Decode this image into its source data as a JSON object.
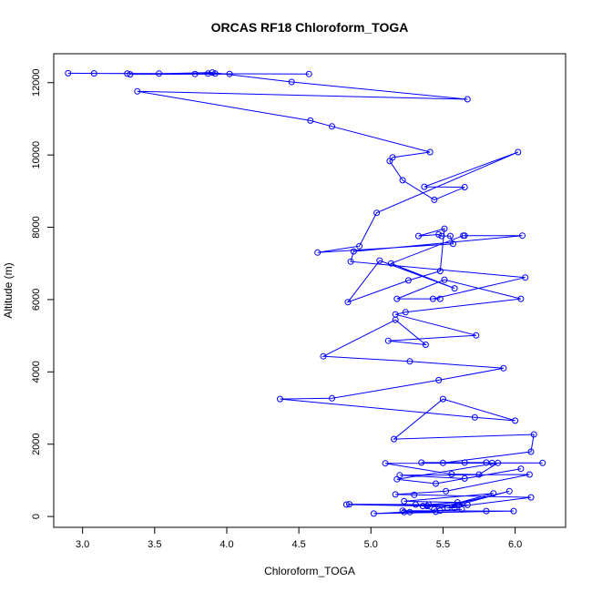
{
  "chart_data": {
    "type": "line",
    "title": "ORCAS RF18 Chloroform_TOGA",
    "xlabel": "Chloroform_TOGA",
    "ylabel": "Altitude (m)",
    "xlim": [
      2.8,
      6.35
    ],
    "ylim": [
      -300,
      12800
    ],
    "xticks": [
      "3.0",
      "3.5",
      "4.0",
      "4.5",
      "5.0",
      "5.5",
      "6.0"
    ],
    "yticks": [
      "0",
      "2000",
      "4000",
      "6000",
      "8000",
      "10000",
      "12000"
    ],
    "grid": false,
    "legend": "none",
    "colors": {
      "series": "#0000ff",
      "axes": "#000000",
      "background": "#ffffff"
    },
    "series": [
      {
        "x": [
          4.57,
          3.31,
          2.9,
          3.08,
          3.53,
          3.78,
          3.87,
          3.92,
          4.02,
          3.33,
          3.9,
          4.45,
          5.67,
          3.38,
          4.58,
          4.73,
          5.41,
          5.15,
          5.13,
          5.22,
          5.44,
          5.65,
          5.37,
          6.02,
          5.04,
          4.92,
          4.63,
          5.57,
          5.55,
          5.49,
          5.47,
          5.33,
          5.51,
          5.48,
          5.26,
          4.84,
          5.06,
          5.58,
          5.14,
          5.64,
          5.65,
          6.05,
          4.88,
          4.86,
          6.07,
          5.43,
          5.48,
          5.18,
          5.51,
          6.04,
          5.24,
          5.17,
          5.73,
          5.12,
          5.38,
          5.17,
          4.67,
          5.27,
          5.92,
          5.47,
          4.73,
          4.37,
          5.72,
          6.0,
          5.5,
          5.16,
          6.13,
          6.11,
          5.5,
          5.35,
          5.65,
          5.8,
          5.84,
          6.19,
          5.1,
          5.56,
          5.75,
          5.88,
          5.18,
          5.45,
          6.04,
          5.65,
          5.2,
          6.1,
          5.52,
          5.17,
          5.3,
          6.11,
          5.53,
          5.96,
          5.44,
          5.85,
          5.23,
          5.6,
          5.4,
          5.31,
          4.85,
          5.61,
          4.83,
          5.39,
          5.58,
          5.67,
          5.36,
          5.45,
          5.27,
          5.22,
          5.8,
          5.99,
          5.02,
          5.63,
          5.23,
          5.48
        ],
        "y": [
          12240,
          12250,
          12260,
          12255,
          12250,
          12240,
          12250,
          12250,
          12240,
          12230,
          12280,
          12020,
          11540,
          11760,
          10950,
          10790,
          10080,
          9930,
          9830,
          9300,
          8760,
          9110,
          9120,
          10080,
          8400,
          7480,
          7300,
          7540,
          7760,
          7760,
          7800,
          7760,
          7960,
          6790,
          6530,
          5930,
          7080,
          6310,
          7000,
          7770,
          7770,
          7770,
          7330,
          7050,
          6610,
          6020,
          6020,
          6020,
          6550,
          6020,
          5650,
          5590,
          5010,
          4860,
          4750,
          5440,
          4430,
          4290,
          4100,
          3770,
          3270,
          3250,
          2740,
          2650,
          3250,
          2140,
          2270,
          1790,
          1480,
          1490,
          1490,
          1490,
          1480,
          1480,
          1470,
          1170,
          1160,
          1480,
          1030,
          910,
          1320,
          1050,
          1140,
          1160,
          700,
          610,
          600,
          530,
          240,
          700,
          200,
          640,
          420,
          390,
          330,
          330,
          340,
          320,
          330,
          290,
          240,
          320,
          290,
          130,
          120,
          160,
          150,
          150,
          80,
          200,
          120,
          160
        ]
      }
    ]
  }
}
